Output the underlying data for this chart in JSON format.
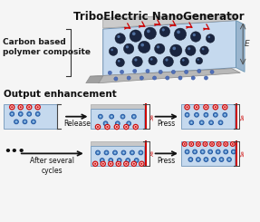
{
  "title": "TriboElectric NanoGenerator",
  "subtitle": "Carbon based\npolymer composite",
  "section2": "Output enhancement",
  "bg_color": "#f5f5f5",
  "panel_blue": "#c5d9ee",
  "panel_gray_top": "#d8d8d8",
  "panel_gray_bot": "#c8c8c8",
  "text_color": "#1a1a1a",
  "dot_blue_fill": "#5590cc",
  "dot_blue_border": "#2255a0",
  "dot_red_fill": "#ffcccc",
  "dot_red_border": "#cc1010",
  "red_bar": "#cc0000",
  "bracket_color": "#444444",
  "label_3e": "3e",
  "label_1e": "1e",
  "label_7e": "7e",
  "label_1e_r2": "1e",
  "label_release": "Release",
  "label_press1": "Press",
  "label_after": "After several\ncycles",
  "label_press2": "Press",
  "label_dots": "•••",
  "label_E": "E"
}
